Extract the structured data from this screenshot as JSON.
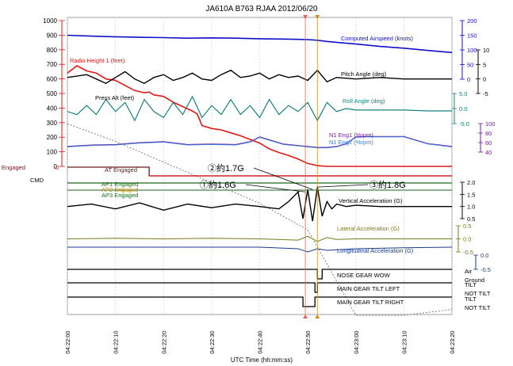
{
  "chart_data": {
    "type": "line",
    "title": "JA610A  B763  RJAA  2012/06/20",
    "xlabel": "UTC Time (hh:mm:ss)",
    "xlim": [
      0,
      80
    ],
    "x_ticks": [
      "04:22:00",
      "04:22:10",
      "04:22:20",
      "04:22:30",
      "04:22:40",
      "04:22:50",
      "04:23:00",
      "04:23:10",
      "04:23:20"
    ],
    "axes": {
      "left_main": {
        "ticks": [
          "1000",
          "900",
          "800",
          "700",
          "600",
          "500",
          "400",
          "300",
          "200",
          "100",
          "0"
        ],
        "range": [
          0,
          1000
        ]
      },
      "right_airspeed": {
        "ticks": [
          "200",
          "150",
          "100",
          "50",
          "0"
        ],
        "range": [
          0,
          200
        ]
      },
      "right_pitch": {
        "ticks": [
          "10",
          "5",
          "0",
          "-5"
        ],
        "range": [
          -5,
          10
        ]
      },
      "right_roll": {
        "ticks": [
          "5.0",
          "0.0",
          "-5.0"
        ],
        "range": [
          -5,
          5
        ]
      },
      "right_n1": {
        "ticks": [
          "100",
          "80",
          "60",
          "40"
        ],
        "range": [
          40,
          100
        ]
      },
      "right_vert": {
        "ticks": [
          "2.0",
          "1.5",
          "1.0",
          "0.5"
        ],
        "range": [
          0.5,
          2.0
        ]
      },
      "right_lat": {
        "ticks": [
          "0.5",
          "0.0",
          "-0.5"
        ],
        "range": [
          -0.5,
          0.5
        ]
      },
      "right_long": {
        "ticks": [
          "0.0",
          "-0.5"
        ],
        "range": [
          -0.5,
          0.0
        ]
      }
    },
    "series": [
      {
        "name": "Computed Airspeed (knots)",
        "color": "#1010c8",
        "x": [
          0,
          5,
          10,
          15,
          20,
          25,
          30,
          35,
          40,
          45,
          50,
          52,
          54,
          56,
          60,
          65,
          70,
          75,
          80
        ],
        "values": [
          150,
          147,
          145,
          143,
          142,
          140,
          141,
          140,
          138,
          137,
          135,
          133,
          129,
          126,
          120,
          112,
          106,
          98,
          91
        ]
      },
      {
        "name": "Radio Height 1 (feet)",
        "color": "#e01818",
        "x": [
          0,
          2,
          4,
          6,
          8,
          10,
          12,
          14,
          16,
          17,
          18,
          20,
          22,
          24,
          26,
          27,
          28,
          30,
          32,
          34,
          36,
          38,
          40,
          42,
          44,
          46,
          48,
          50,
          52,
          54,
          60,
          70,
          80
        ],
        "values": [
          640,
          690,
          655,
          640,
          600,
          590,
          555,
          520,
          505,
          510,
          490,
          480,
          440,
          410,
          380,
          360,
          280,
          260,
          250,
          230,
          210,
          185,
          160,
          120,
          95,
          75,
          50,
          20,
          5,
          0,
          0,
          0,
          0
        ]
      },
      {
        "name": "Press Alt (feet)",
        "color": "#777777",
        "x": [
          0,
          10,
          20,
          30,
          40,
          50,
          60,
          70,
          80
        ],
        "values": [
          650,
          590,
          520,
          450,
          380,
          290,
          0,
          0,
          20
        ]
      },
      {
        "name": "Pitch Angle (deg)",
        "color": "#000000",
        "x": [
          0,
          4,
          8,
          10,
          12,
          14,
          16,
          18,
          20,
          22,
          24,
          26,
          28,
          30,
          32,
          34,
          36,
          38,
          40,
          42,
          44,
          46,
          48,
          50,
          52,
          54,
          56,
          60,
          65,
          70,
          75,
          80
        ],
        "values": [
          0.5,
          1.5,
          -1.5,
          0.5,
          2.5,
          0,
          -1.5,
          0.5,
          1.5,
          -0.5,
          0.5,
          2,
          0,
          -0.5,
          1.5,
          3,
          0.5,
          1,
          2,
          0,
          1.5,
          0.5,
          1,
          -0.5,
          3,
          -1,
          0.5,
          0,
          0.5,
          0,
          0,
          0
        ]
      },
      {
        "name": "Roll Angle (deg)",
        "color": "#1a8080",
        "x": [
          0,
          2,
          4,
          6,
          8,
          10,
          12,
          14,
          16,
          18,
          20,
          22,
          24,
          26,
          28,
          30,
          32,
          34,
          36,
          38,
          40,
          42,
          44,
          46,
          48,
          50,
          52,
          54,
          56,
          58,
          60,
          65,
          70,
          75,
          80
        ],
        "values": [
          -1,
          -2,
          1,
          -2,
          3,
          -1,
          2,
          -4,
          3,
          -1,
          -3,
          2,
          -2,
          4,
          -3,
          1,
          -2,
          3,
          -2,
          1,
          -3,
          3,
          -2,
          1,
          -1,
          2,
          -4,
          2,
          -1,
          0,
          -0.5,
          -0.5,
          -0.5,
          -0.8,
          -0.8
        ]
      },
      {
        "name": "N1 Eng1 (%rpm)",
        "color": "#7a1aa0",
        "x": [
          0,
          5,
          10,
          15,
          20,
          25,
          30,
          35,
          38,
          40,
          42,
          45,
          50,
          52,
          54,
          56,
          58,
          60,
          62,
          64,
          66,
          70,
          75,
          80
        ],
        "values": [
          52,
          55,
          56,
          60,
          62,
          56,
          57,
          56,
          62,
          72,
          66,
          57,
          52,
          50,
          50,
          52,
          58,
          72,
          73,
          73,
          73,
          73,
          58,
          52
        ]
      },
      {
        "name": "N1 Eng2 (%rpm)",
        "color": "#3a7bd5",
        "x": [
          0,
          5,
          10,
          15,
          20,
          25,
          30,
          35,
          38,
          40,
          42,
          45,
          50,
          52,
          54,
          56,
          58,
          60,
          62,
          64,
          66,
          70,
          75,
          80
        ],
        "values": [
          51,
          54,
          55,
          59,
          61,
          55,
          56,
          55,
          61,
          71,
          65,
          56,
          51,
          49,
          49,
          51,
          57,
          71,
          72,
          72,
          72,
          72,
          57,
          51
        ]
      },
      {
        "name": "Vertical Acceleration (G)",
        "color": "#000000",
        "x": [
          0,
          5,
          10,
          15,
          20,
          25,
          30,
          35,
          40,
          44,
          46,
          48,
          49,
          50,
          51,
          52,
          53,
          54,
          55,
          56,
          58,
          60,
          65,
          70,
          75,
          80
        ],
        "values": [
          1.0,
          1.1,
          0.9,
          1.15,
          0.85,
          1.1,
          0.95,
          1.1,
          1.0,
          0.9,
          1.2,
          1.6,
          0.5,
          1.7,
          0.4,
          1.8,
          0.6,
          1.2,
          0.9,
          1.1,
          1.0,
          1.05,
          1.0,
          1.0,
          1.0,
          1.0
        ]
      },
      {
        "name": "Lateral Acceleration (G)",
        "color": "#7a7a1a",
        "x": [
          0,
          10,
          20,
          30,
          40,
          48,
          50,
          52,
          54,
          56,
          60,
          70,
          80
        ],
        "values": [
          0.0,
          0.02,
          0.0,
          0.02,
          0.0,
          -0.05,
          0.1,
          -0.1,
          0.05,
          -0.02,
          0.0,
          0.0,
          0.0
        ]
      },
      {
        "name": "Longitudinal Acceleration (G)",
        "color": "#1a3a8a",
        "x": [
          0,
          10,
          20,
          30,
          40,
          48,
          50,
          52,
          54,
          60,
          70,
          80
        ],
        "values": [
          0.0,
          0.0,
          0.0,
          0.0,
          0.0,
          -0.05,
          -0.15,
          -0.05,
          -0.1,
          -0.05,
          -0.02,
          0.0
        ]
      }
    ],
    "discretes": [
      {
        "name": "AT Engaged",
        "label_left": "Engaged",
        "label_zero": "0",
        "x": [
          0,
          17,
          17,
          80
        ],
        "values": [
          1,
          1,
          0,
          0
        ]
      },
      {
        "name": "AP1 Engaged",
        "x": [
          0,
          80
        ],
        "values": [
          1,
          1
        ]
      },
      {
        "name": "AP2 Engaged",
        "x": [
          0,
          80
        ],
        "values": [
          0,
          0
        ]
      },
      {
        "name": "AP3 Engaged",
        "x": [
          0,
          80
        ],
        "values": [
          0,
          0
        ]
      },
      {
        "name": "NOSE GEAR WOW",
        "high": "Air",
        "low": "Ground",
        "x": [
          0,
          52,
          52,
          53,
          53,
          80
        ],
        "values": [
          1,
          1,
          0,
          0,
          1,
          1
        ]
      },
      {
        "name": "MAIN GEAR TILT LEFT",
        "high": "TILT",
        "low": "NOT TILT",
        "x": [
          0,
          51.5,
          51.5,
          52,
          52,
          80
        ],
        "values": [
          1,
          1,
          0,
          0,
          1,
          1
        ]
      },
      {
        "name": "MAIN GEAR TILT RIGHT",
        "high": "TILT",
        "low": "NOT TILT",
        "x": [
          0,
          49,
          49,
          51.5,
          51.5,
          80
        ],
        "values": [
          1,
          1,
          0,
          0,
          1,
          1
        ]
      }
    ],
    "annotations": [
      {
        "text": "①約1.6G",
        "x": 49.5,
        "g": 1.6
      },
      {
        "text": "②約1.7G",
        "x": 51,
        "g": 1.7
      },
      {
        "text": "③約1.8G",
        "x": 52,
        "g": 1.8
      }
    ],
    "markers": [
      49.5,
      52
    ],
    "left_labels": {
      "engaged": "Engaged",
      "zero": "0",
      "cmd": "CMD"
    }
  }
}
